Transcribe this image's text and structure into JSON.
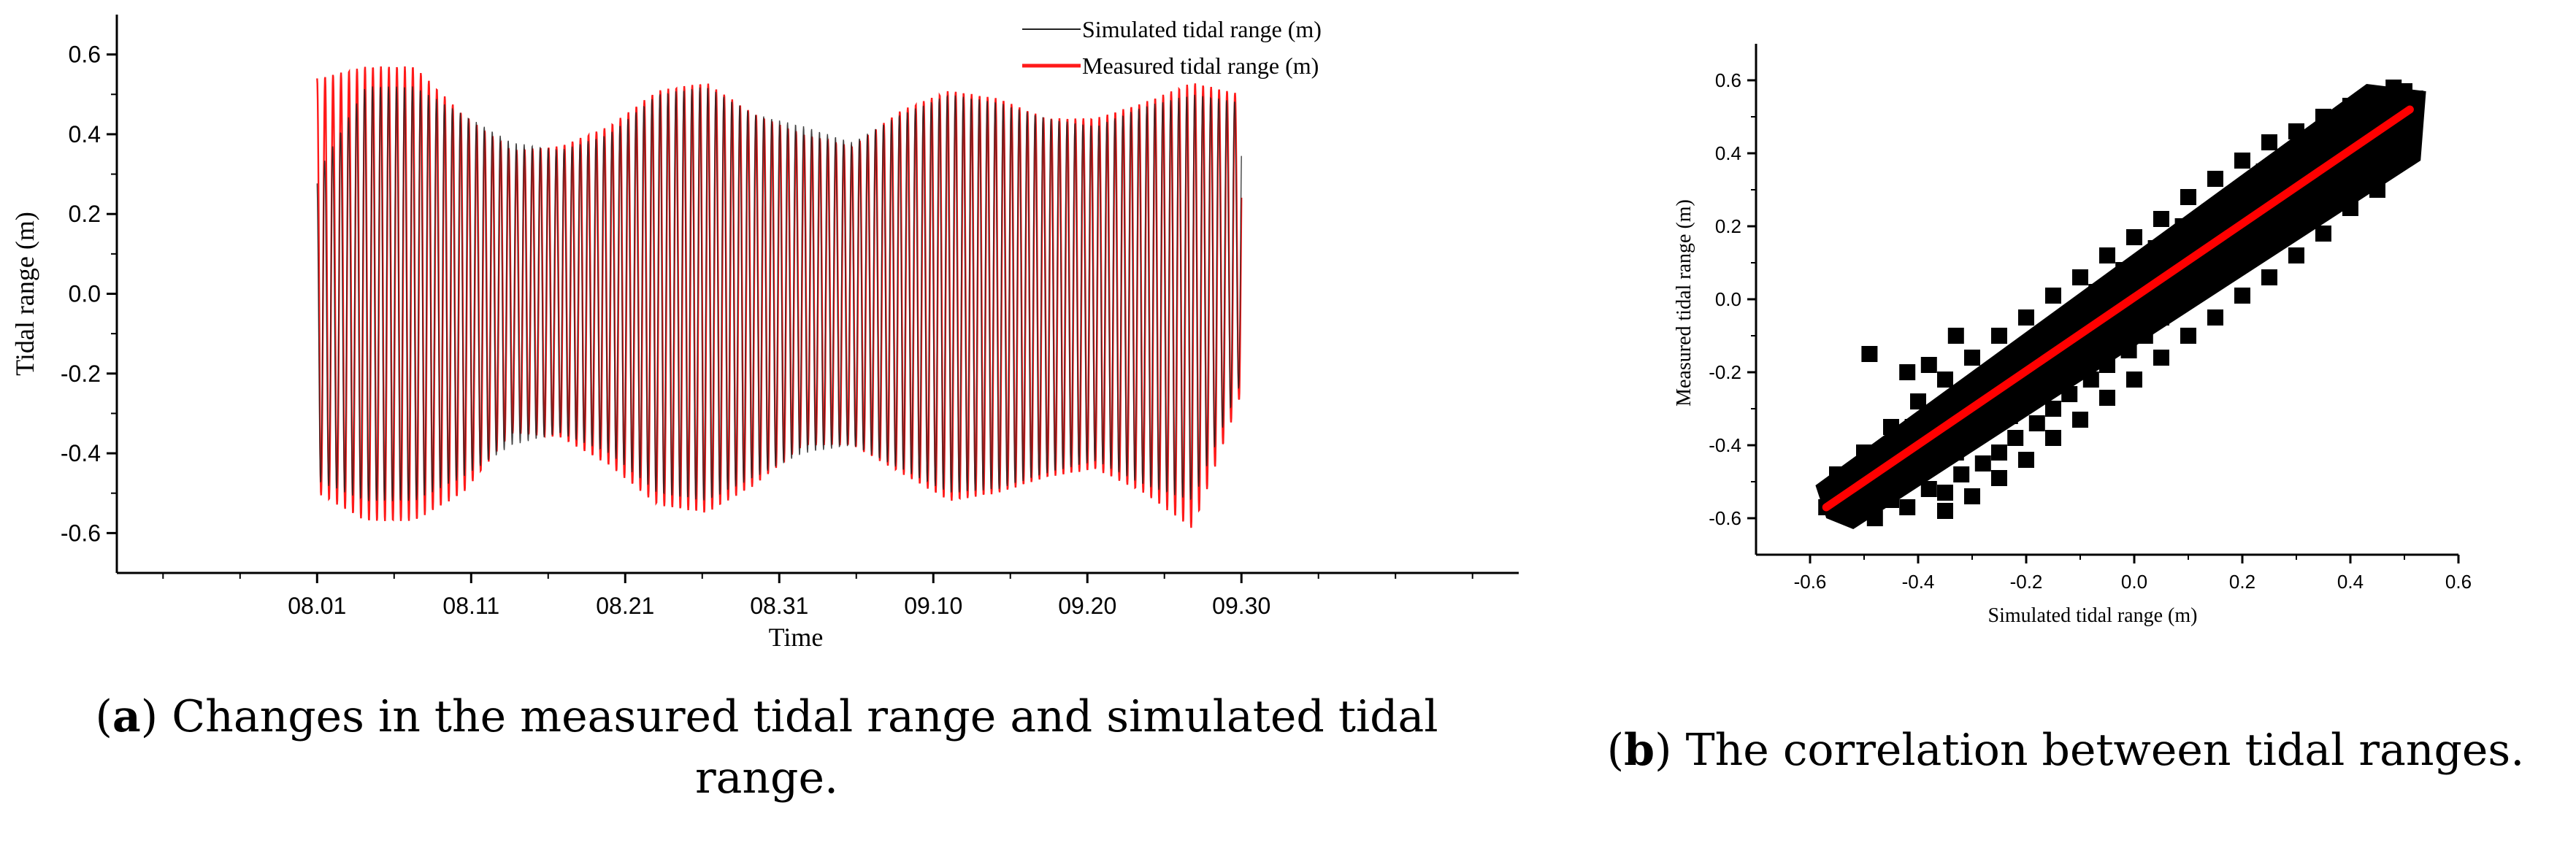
{
  "chart_data": [
    {
      "id": "a",
      "type": "line",
      "caption_letter": "a",
      "caption_text": ") Changes in the measured tidal range and simulated tidal range.",
      "xlabel": "Time",
      "ylabel": "Tidal range (m)",
      "x_tick_labels": [
        "08.01",
        "08.11",
        "08.21",
        "08.31",
        "09.10",
        "09.20",
        "09.30"
      ],
      "x_range_days": [
        -13,
        78
      ],
      "x_tick_days": [
        0,
        10,
        20,
        30,
        40,
        50,
        60
      ],
      "ylim": [
        -0.7,
        0.7
      ],
      "y_ticks": [
        -0.6,
        -0.4,
        -0.2,
        0.0,
        0.2,
        0.4,
        0.6
      ],
      "y_tick_labels": [
        "-0.6",
        "-0.4",
        "-0.2",
        "0.0",
        "0.2",
        "0.4",
        "0.6"
      ],
      "legend_position": "top-right",
      "series": [
        {
          "name": "Simulated tidal range (m)",
          "color": "#222222",
          "high_envelope": [
            0.3,
            0.52,
            0.52,
            0.45,
            0.38,
            0.36,
            0.4,
            0.5,
            0.52,
            0.45,
            0.42,
            0.38,
            0.45,
            0.5,
            0.48,
            0.44,
            0.42,
            0.47,
            0.5,
            0.48
          ],
          "low_envelope": [
            -0.47,
            -0.52,
            -0.52,
            -0.46,
            -0.38,
            -0.35,
            -0.4,
            -0.5,
            -0.52,
            -0.46,
            -0.4,
            -0.38,
            -0.44,
            -0.5,
            -0.49,
            -0.45,
            -0.42,
            -0.48,
            -0.52,
            -0.22
          ]
        },
        {
          "name": "Measured tidal range (m)",
          "color": "#ff1a1a",
          "high_envelope": [
            0.54,
            0.57,
            0.57,
            0.45,
            0.36,
            0.37,
            0.42,
            0.51,
            0.53,
            0.45,
            0.4,
            0.37,
            0.46,
            0.51,
            0.49,
            0.44,
            0.44,
            0.48,
            0.53,
            0.5
          ],
          "low_envelope": [
            -0.5,
            -0.57,
            -0.57,
            -0.5,
            -0.35,
            -0.36,
            -0.43,
            -0.53,
            -0.55,
            -0.48,
            -0.38,
            -0.38,
            -0.45,
            -0.52,
            -0.5,
            -0.46,
            -0.44,
            -0.5,
            -0.59,
            -0.25
          ]
        }
      ],
      "cycles_per_day": 1.93
    },
    {
      "id": "b",
      "type": "scatter",
      "caption_letter": "b",
      "caption_text": ") The correlation between tidal ranges.",
      "xlabel": "Simulated tidal range (m)",
      "ylabel": "Measured tidal range (m)",
      "xlim": [
        -0.7,
        0.6
      ],
      "ylim": [
        -0.7,
        0.7
      ],
      "x_ticks": [
        -0.6,
        -0.4,
        -0.2,
        0.0,
        0.2,
        0.4,
        0.6
      ],
      "x_tick_labels": [
        "-0.6",
        "-0.4",
        "-0.2",
        "0.0",
        "0.2",
        "0.4",
        "0.6"
      ],
      "y_ticks": [
        -0.6,
        -0.4,
        -0.2,
        0.0,
        0.2,
        0.4,
        0.6
      ],
      "y_tick_labels": [
        "-0.6",
        "-0.4",
        "-0.2",
        "0.0",
        "0.2",
        "0.4",
        "0.6"
      ],
      "point_color": "#000000",
      "fit_color": "#ff0000",
      "fit_line": {
        "x_start": -0.57,
        "y_start": -0.57,
        "x_end": 0.51,
        "y_end": 0.52
      },
      "points": [
        [
          -0.57,
          -0.57
        ],
        [
          -0.55,
          -0.55
        ],
        [
          -0.52,
          -0.58
        ],
        [
          -0.5,
          -0.52
        ],
        [
          -0.48,
          -0.6
        ],
        [
          -0.47,
          -0.5
        ],
        [
          -0.45,
          -0.55
        ],
        [
          -0.43,
          -0.47
        ],
        [
          -0.42,
          -0.57
        ],
        [
          -0.4,
          -0.48
        ],
        [
          -0.38,
          -0.52
        ],
        [
          -0.36,
          -0.44
        ],
        [
          -0.35,
          -0.53
        ],
        [
          -0.34,
          -0.4
        ],
        [
          -0.32,
          -0.48
        ],
        [
          -0.3,
          -0.38
        ],
        [
          -0.28,
          -0.45
        ],
        [
          -0.27,
          -0.33
        ],
        [
          -0.25,
          -0.42
        ],
        [
          -0.24,
          -0.28
        ],
        [
          -0.22,
          -0.38
        ],
        [
          -0.2,
          -0.25
        ],
        [
          -0.18,
          -0.34
        ],
        [
          -0.17,
          -0.2
        ],
        [
          -0.15,
          -0.3
        ],
        [
          -0.13,
          -0.16
        ],
        [
          -0.12,
          -0.26
        ],
        [
          -0.1,
          -0.12
        ],
        [
          -0.08,
          -0.22
        ],
        [
          -0.06,
          -0.08
        ],
        [
          -0.05,
          -0.18
        ],
        [
          -0.03,
          -0.04
        ],
        [
          -0.01,
          -0.14
        ],
        [
          0.0,
          0.0
        ],
        [
          0.02,
          -0.1
        ],
        [
          0.03,
          0.05
        ],
        [
          0.05,
          -0.05
        ],
        [
          0.07,
          0.09
        ],
        [
          0.08,
          0.0
        ],
        [
          0.1,
          0.13
        ],
        [
          0.12,
          0.04
        ],
        [
          0.13,
          0.17
        ],
        [
          0.15,
          0.08
        ],
        [
          0.17,
          0.21
        ],
        [
          0.18,
          0.12
        ],
        [
          0.2,
          0.25
        ],
        [
          0.22,
          0.16
        ],
        [
          0.23,
          0.29
        ],
        [
          0.25,
          0.2
        ],
        [
          0.27,
          0.33
        ],
        [
          0.28,
          0.24
        ],
        [
          0.3,
          0.37
        ],
        [
          0.32,
          0.28
        ],
        [
          0.33,
          0.41
        ],
        [
          0.35,
          0.32
        ],
        [
          0.37,
          0.44
        ],
        [
          0.38,
          0.36
        ],
        [
          0.4,
          0.48
        ],
        [
          0.42,
          0.4
        ],
        [
          0.43,
          0.51
        ],
        [
          0.45,
          0.44
        ],
        [
          0.47,
          0.54
        ],
        [
          0.48,
          0.47
        ],
        [
          0.5,
          0.56
        ],
        [
          0.51,
          0.52
        ],
        [
          0.45,
          0.55
        ],
        [
          0.4,
          0.53
        ],
        [
          0.35,
          0.5
        ],
        [
          0.3,
          0.46
        ],
        [
          0.25,
          0.43
        ],
        [
          0.2,
          0.38
        ],
        [
          0.15,
          0.33
        ],
        [
          0.1,
          0.28
        ],
        [
          0.05,
          0.22
        ],
        [
          0.0,
          0.17
        ],
        [
          -0.05,
          0.12
        ],
        [
          -0.1,
          0.06
        ],
        [
          -0.15,
          0.01
        ],
        [
          -0.2,
          -0.05
        ],
        [
          -0.25,
          -0.1
        ],
        [
          -0.3,
          -0.16
        ],
        [
          -0.35,
          -0.22
        ],
        [
          -0.4,
          -0.28
        ],
        [
          -0.45,
          -0.35
        ],
        [
          -0.5,
          -0.42
        ],
        [
          -0.55,
          -0.48
        ],
        [
          0.45,
          0.3
        ],
        [
          0.4,
          0.25
        ],
        [
          0.35,
          0.18
        ],
        [
          0.3,
          0.12
        ],
        [
          0.25,
          0.06
        ],
        [
          0.2,
          0.01
        ],
        [
          0.15,
          -0.05
        ],
        [
          0.1,
          -0.1
        ],
        [
          0.05,
          -0.16
        ],
        [
          0.0,
          -0.22
        ],
        [
          -0.05,
          -0.27
        ],
        [
          -0.1,
          -0.33
        ],
        [
          -0.15,
          -0.38
        ],
        [
          -0.2,
          -0.44
        ],
        [
          -0.25,
          -0.49
        ],
        [
          -0.3,
          -0.54
        ],
        [
          -0.35,
          -0.58
        ],
        [
          -0.49,
          -0.15
        ],
        [
          -0.42,
          -0.2
        ],
        [
          -0.38,
          -0.18
        ],
        [
          -0.36,
          -0.3
        ],
        [
          -0.33,
          -0.1
        ],
        [
          0.48,
          0.58
        ],
        [
          0.5,
          0.57
        ],
        [
          0.52,
          0.55
        ],
        [
          0.49,
          0.49
        ],
        [
          0.47,
          0.43
        ],
        [
          0.44,
          0.35
        ],
        [
          0.41,
          0.4
        ],
        [
          0.39,
          0.33
        ],
        [
          0.36,
          0.27
        ],
        [
          0.34,
          0.36
        ],
        [
          0.31,
          0.3
        ],
        [
          0.29,
          0.21
        ],
        [
          0.26,
          0.26
        ],
        [
          0.24,
          0.35
        ],
        [
          0.21,
          0.19
        ],
        [
          0.19,
          0.28
        ],
        [
          0.16,
          0.14
        ],
        [
          0.14,
          0.24
        ],
        [
          0.11,
          0.1
        ],
        [
          0.09,
          0.2
        ],
        [
          0.06,
          0.04
        ],
        [
          0.04,
          0.14
        ],
        [
          0.01,
          -0.02
        ],
        [
          -0.02,
          0.08
        ],
        [
          -0.04,
          -0.08
        ],
        [
          -0.07,
          0.02
        ],
        [
          -0.09,
          -0.14
        ],
        [
          -0.11,
          -0.04
        ],
        [
          -0.14,
          -0.2
        ],
        [
          -0.16,
          -0.1
        ],
        [
          -0.19,
          -0.26
        ],
        [
          -0.21,
          -0.16
        ],
        [
          -0.23,
          -0.32
        ],
        [
          -0.26,
          -0.22
        ],
        [
          -0.29,
          -0.36
        ],
        [
          -0.31,
          -0.28
        ],
        [
          -0.33,
          -0.42
        ],
        [
          -0.37,
          -0.33
        ],
        [
          -0.39,
          -0.4
        ],
        [
          -0.41,
          -0.35
        ],
        [
          -0.44,
          -0.42
        ],
        [
          -0.46,
          -0.45
        ],
        [
          -0.51,
          -0.48
        ],
        [
          -0.53,
          -0.52
        ],
        [
          -0.56,
          -0.53
        ]
      ]
    }
  ]
}
